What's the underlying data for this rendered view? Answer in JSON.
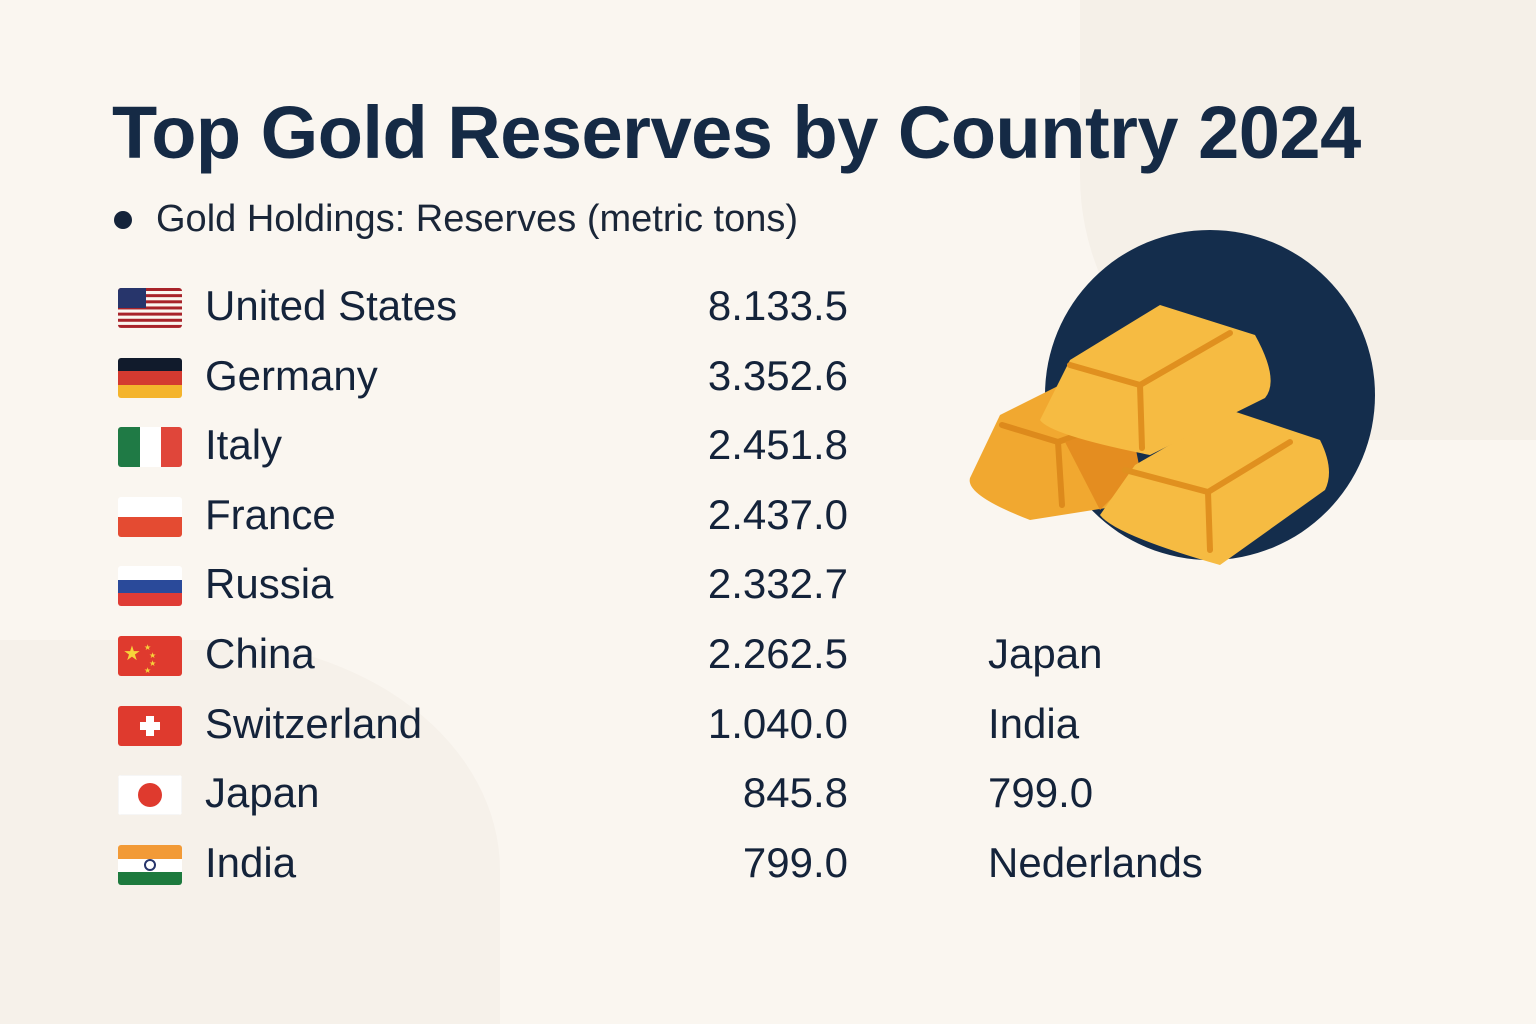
{
  "title": "Top Gold Reserves by Country 2024",
  "legend": "Gold Holdings: Reserves (metric tons)",
  "chart_data": {
    "type": "table",
    "title": "Top Gold Reserves by Country 2024",
    "series_label": "Gold Holdings: Reserves (metric tons)",
    "rows": [
      {
        "country": "United States",
        "value": "8.133.5",
        "flag": "us-flag"
      },
      {
        "country": "Germany",
        "value": "3.352.6",
        "flag": "germany-flag"
      },
      {
        "country": "Italy",
        "value": "2.451.8",
        "flag": "italy-flag"
      },
      {
        "country": "France",
        "value": "2.437.0",
        "flag": "france-flag"
      },
      {
        "country": "Russia",
        "value": "2.332.7",
        "flag": "russia-flag"
      },
      {
        "country": "China",
        "value": "2.262.5",
        "flag": "china-flag"
      },
      {
        "country": "Switzerland",
        "value": "1.040.0",
        "flag": "switzerland-flag"
      },
      {
        "country": "Japan",
        "value": "845.8",
        "flag": "japan-flag"
      },
      {
        "country": "India",
        "value": "799.0",
        "flag": "india-flag"
      }
    ],
    "side_labels": [
      "Japan",
      "India",
      "799.0",
      "Nederlands"
    ]
  },
  "colors": {
    "title": "#152a45",
    "circle": "#142d4c",
    "gold": "#f5b73b",
    "gold_dark": "#e0901f",
    "background": "#faf6f0"
  },
  "illustration": "gold-bars-icon"
}
